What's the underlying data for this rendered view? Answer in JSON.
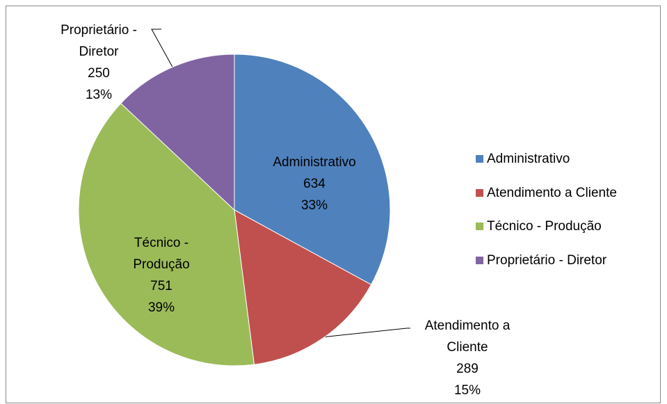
{
  "chart_data": {
    "type": "pie",
    "categories": [
      "Administrativo",
      "Atendimento a Cliente",
      "Técnico - Produção",
      "Proprietário - Diretor"
    ],
    "values": [
      634,
      289,
      751,
      250
    ],
    "percent_labels": [
      "33%",
      "15%",
      "39%",
      "13%"
    ],
    "colors": [
      "#4f81bd",
      "#c0504d",
      "#9bbb59",
      "#8064a2"
    ],
    "legend": "right"
  }
}
